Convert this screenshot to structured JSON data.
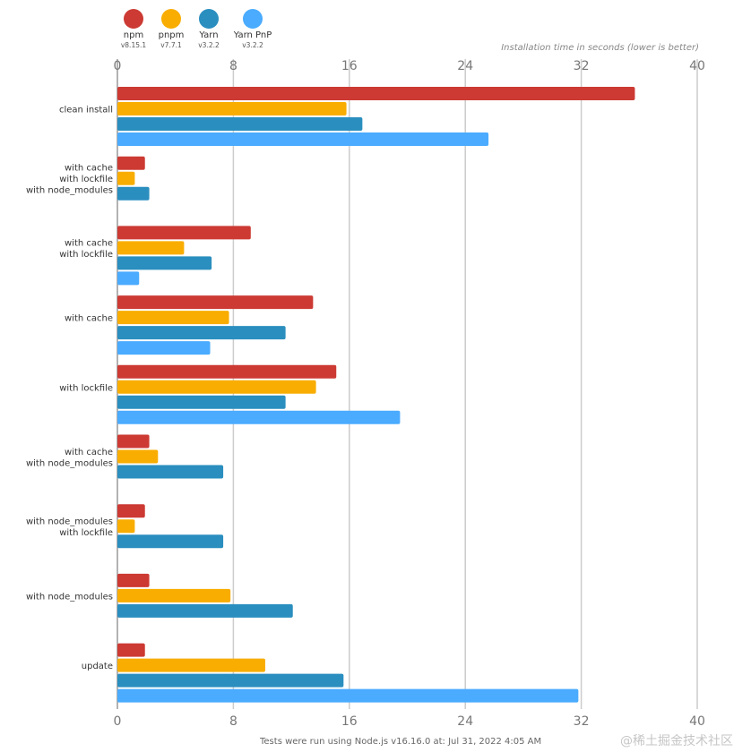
{
  "chart_data": {
    "type": "bar",
    "orientation": "horizontal",
    "xlabel": "Installation time in seconds (lower is better)",
    "xlim": [
      0,
      40
    ],
    "xticks": [
      0,
      8,
      16,
      24,
      32,
      40
    ],
    "grid": true,
    "legend_placement": "top-left",
    "categories": [
      [
        "clean install"
      ],
      [
        "with cache",
        "with lockfile",
        "with node_modules"
      ],
      [
        "with cache",
        "with lockfile"
      ],
      [
        "with cache"
      ],
      [
        "with lockfile"
      ],
      [
        "with cache",
        "with node_modules"
      ],
      [
        "with node_modules",
        "with lockfile"
      ],
      [
        "with node_modules"
      ],
      [
        "update"
      ]
    ],
    "series": [
      {
        "name": "npm",
        "version": "v8.15.1",
        "color": "#cc3a33",
        "values": [
          35.7,
          1.9,
          9.2,
          13.5,
          15.1,
          2.2,
          1.9,
          2.2,
          1.9
        ]
      },
      {
        "name": "pnpm",
        "version": "v7.7.1",
        "color": "#f9ad00",
        "values": [
          15.8,
          1.2,
          4.6,
          7.7,
          13.7,
          2.8,
          1.2,
          7.8,
          10.2
        ]
      },
      {
        "name": "Yarn",
        "version": "v3.2.2",
        "color": "#2a8ebf",
        "values": [
          16.9,
          2.2,
          6.5,
          11.6,
          11.6,
          7.3,
          7.3,
          12.1,
          15.6
        ]
      },
      {
        "name": "Yarn PnP",
        "version": "v3.2.2",
        "color": "#4aabff",
        "values": [
          25.6,
          null,
          1.5,
          6.4,
          19.5,
          null,
          null,
          null,
          31.8
        ]
      }
    ]
  },
  "footer": "Tests were run using Node.js v16.16.0 at: Jul 31, 2022 4:05 AM",
  "watermark": "@稀土掘金技术社区"
}
